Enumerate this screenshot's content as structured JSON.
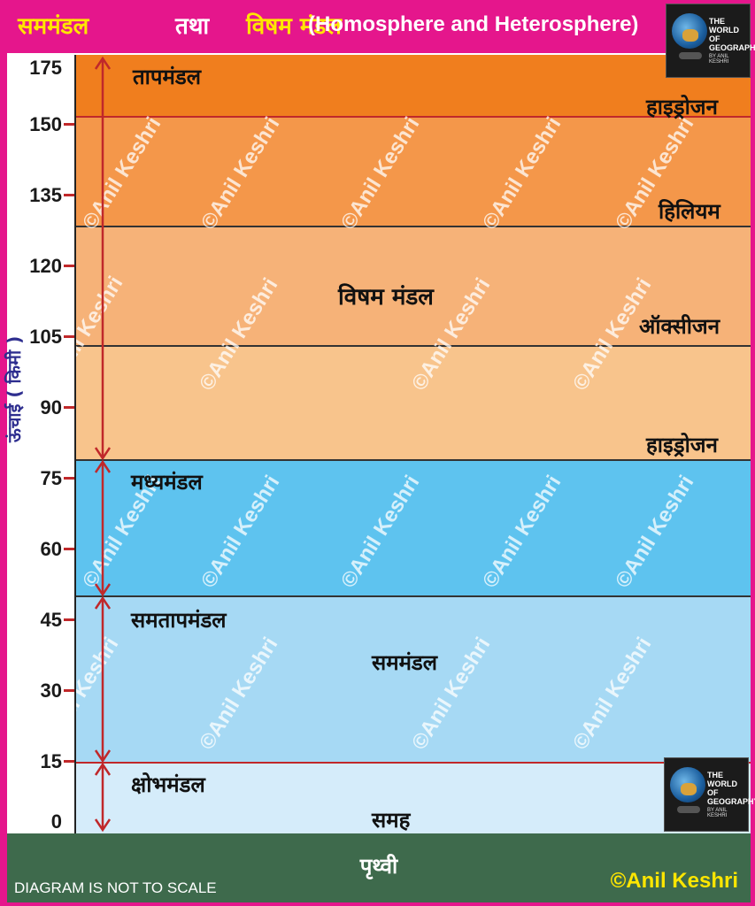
{
  "title": {
    "part1": "सममंडल",
    "part2": "तथा",
    "part3": "विषम मंडल",
    "part4": "(Homosphere and Heterosphere)"
  },
  "y_axis": {
    "label": "ऊंचाई ( किमी )",
    "ticks": [
      "175",
      "150",
      "135",
      "120",
      "105",
      "90",
      "75",
      "60",
      "45",
      "30",
      "15",
      "0"
    ]
  },
  "layers": {
    "thermosphere": "तापमंडल",
    "mesosphere": "मध्यमंडल",
    "stratosphere": "समतापमंडल",
    "troposphere": "क्षोभमंडल"
  },
  "zones": {
    "heterosphere": "विषम मंडल",
    "homosphere": "सममंडल",
    "homo_surface": "समह"
  },
  "gases": {
    "hydrogen_top": "हाइड्रोजन",
    "helium": "हिलियम",
    "oxygen": "ऑक्सीजन",
    "hydrogen_lower": "हाइड्रोजन"
  },
  "earth": "पृथ्वी",
  "footer": {
    "note": "DIAGRAM IS NOT TO SCALE",
    "copyright": "©Anil Keshri"
  },
  "watermark": "©Anil Keshri",
  "logo": {
    "line1": "THE",
    "line2": "WORLD",
    "line3": "OF",
    "line4": "GEOGRAPHY",
    "sub": "BY ANIL KESHRI"
  },
  "colors": {
    "frame": "#e5168c",
    "title_yellow": "#ffe600",
    "band_thermo": "#f07e1e",
    "band_helium": "#f4974a",
    "band_oxygen": "#f6b278",
    "band_hydrogen": "#f8c48c",
    "band_meso": "#5ec3ef",
    "band_strato": "#a6d9f4",
    "band_tropo": "#d5ecfa",
    "earth": "#3e6a4c",
    "arrow": "#c0282a"
  }
}
